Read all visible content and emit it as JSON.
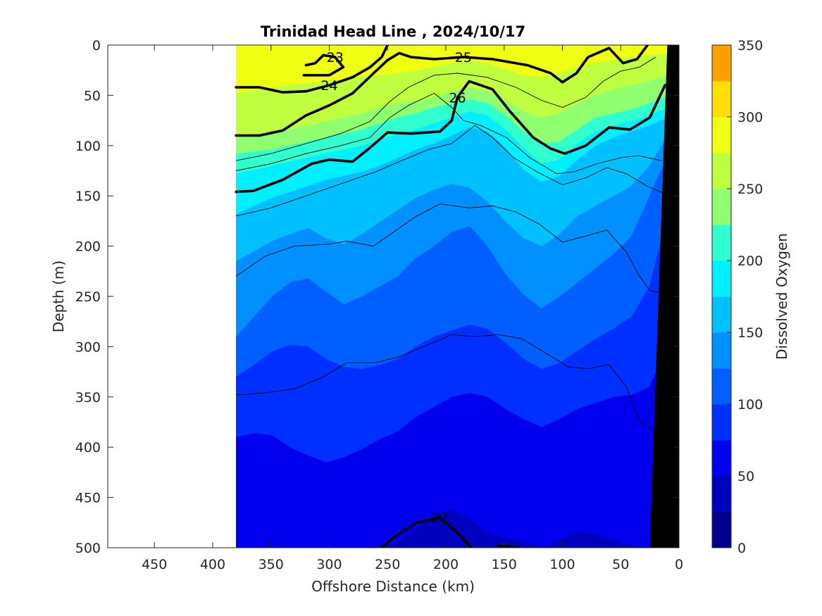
{
  "chart_data": {
    "type": "contour",
    "title": "Trinidad Head Line , 2024/10/17",
    "xlabel": "Offshore Distance (km)",
    "ylabel": "Depth (m)",
    "xlim": [
      490,
      0
    ],
    "ylim": [
      0,
      500
    ],
    "x_reversed": true,
    "y_reversed": true,
    "xticks": [
      450,
      400,
      350,
      300,
      250,
      200,
      150,
      100,
      50,
      0
    ],
    "yticks": [
      0,
      50,
      100,
      150,
      200,
      250,
      300,
      350,
      400,
      450,
      500
    ],
    "data_x_range": [
      380,
      10
    ],
    "colorbar": {
      "label": "Dissolved Oxygen",
      "min": 0,
      "max": 350,
      "step": 25,
      "ticks": [
        0,
        50,
        100,
        150,
        200,
        250,
        300,
        350
      ],
      "colors": [
        "#00008f",
        "#0000bf",
        "#0000ef",
        "#0030ff",
        "#0060ff",
        "#0090ff",
        "#00c0ff",
        "#00f0ff",
        "#30ffcf",
        "#90ff6f",
        "#c0ff3f",
        "#f0ff0f",
        "#ffdf00",
        "#ffa000",
        "#ff5f00",
        "#ff1f00",
        "#bf0000"
      ]
    },
    "oxygen_bands": [
      {
        "level": 250,
        "depths": [
          48,
          45,
          42,
          40,
          38,
          36,
          34,
          32,
          30,
          28,
          26,
          22,
          18,
          16,
          18,
          24,
          30,
          32,
          28,
          22,
          18,
          15,
          12,
          10,
          9
        ]
      },
      {
        "level": 225,
        "depths": [
          92,
          88,
          86,
          84,
          80,
          76,
          72,
          68,
          62,
          58,
          56,
          52,
          46,
          42,
          46,
          55,
          66,
          72,
          68,
          58,
          50,
          44,
          40,
          36,
          30
        ]
      },
      {
        "level": 200,
        "depths": [
          108,
          106,
          104,
          100,
          96,
          92,
          88,
          84,
          78,
          72,
          68,
          62,
          58,
          54,
          58,
          70,
          86,
          98,
          96,
          84,
          72,
          68,
          64,
          58,
          50
        ]
      },
      {
        "level": 175,
        "depths": [
          128,
          124,
          120,
          116,
          112,
          108,
          104,
          100,
          94,
          88,
          84,
          78,
          72,
          66,
          70,
          84,
          102,
          118,
          114,
          98,
          86,
          80,
          76,
          70,
          62
        ]
      },
      {
        "level": 150,
        "depths": [
          168,
          160,
          152,
          146,
          140,
          134,
          130,
          126,
          120,
          112,
          104,
          98,
          90,
          82,
          86,
          102,
          124,
          136,
          130,
          114,
          100,
          92,
          86,
          80,
          72
        ]
      },
      {
        "level": 125,
        "depths": [
          215,
          205,
          195,
          188,
          182,
          192,
          198,
          188,
          176,
          164,
          152,
          144,
          138,
          142,
          156,
          176,
          192,
          200,
          188,
          170,
          160,
          150,
          140,
          120,
          90
        ]
      },
      {
        "level": 100,
        "depths": [
          290,
          270,
          250,
          236,
          232,
          245,
          258,
          250,
          240,
          230,
          212,
          200,
          186,
          180,
          200,
          228,
          248,
          262,
          250,
          236,
          222,
          208,
          190,
          150,
          110
        ]
      },
      {
        "level": 75,
        "depths": [
          330,
          318,
          305,
          298,
          300,
          312,
          320,
          322,
          318,
          312,
          300,
          290,
          284,
          278,
          282,
          296,
          312,
          322,
          316,
          304,
          292,
          282,
          270,
          240,
          170
        ]
      },
      {
        "level": 50,
        "depths": [
          390,
          386,
          388,
          400,
          408,
          415,
          410,
          402,
          392,
          384,
          370,
          360,
          350,
          346,
          350,
          362,
          372,
          380,
          372,
          362,
          356,
          350,
          348,
          340,
          300
        ]
      },
      {
        "level": 25,
        "depths": [
          500,
          500,
          500,
          500,
          500,
          500,
          500,
          500,
          500,
          495,
          480,
          468,
          462,
          470,
          486,
          490,
          494,
          500,
          492,
          484,
          486,
          492,
          498,
          500,
          500
        ]
      }
    ],
    "density_contours": [
      {
        "level": 23,
        "label": "23",
        "bold": true,
        "points": [
          [
            320,
            20
          ],
          [
            312,
            18
          ],
          [
            305,
            10
          ],
          [
            295,
            12
          ],
          [
            288,
            22
          ],
          [
            300,
            30
          ],
          [
            322,
            30
          ]
        ]
      },
      {
        "level": 24,
        "label": "24",
        "bold": true,
        "points": [
          [
            380,
            42
          ],
          [
            360,
            42
          ],
          [
            340,
            47
          ],
          [
            320,
            46
          ],
          [
            300,
            40
          ],
          [
            280,
            32
          ],
          [
            265,
            22
          ],
          [
            255,
            12
          ],
          [
            250,
            0
          ]
        ]
      },
      {
        "level": 25,
        "label": "25",
        "bold": true,
        "points": [
          [
            380,
            90
          ],
          [
            360,
            90
          ],
          [
            340,
            85
          ],
          [
            320,
            70
          ],
          [
            300,
            60
          ],
          [
            280,
            48
          ],
          [
            262,
            28
          ],
          [
            250,
            15
          ],
          [
            240,
            8
          ],
          [
            230,
            12
          ],
          [
            210,
            14
          ],
          [
            185,
            12
          ],
          [
            160,
            14
          ],
          [
            130,
            20
          ],
          [
            110,
            28
          ],
          [
            100,
            37
          ],
          [
            88,
            28
          ],
          [
            78,
            12
          ],
          [
            60,
            3
          ],
          [
            48,
            18
          ],
          [
            36,
            14
          ],
          [
            27,
            0
          ]
        ]
      },
      {
        "level": 26,
        "label": "26",
        "bold": true,
        "points": [
          [
            380,
            146
          ],
          [
            365,
            145
          ],
          [
            340,
            134
          ],
          [
            315,
            118
          ],
          [
            300,
            114
          ],
          [
            280,
            116
          ],
          [
            265,
            102
          ],
          [
            250,
            87
          ],
          [
            230,
            88
          ],
          [
            205,
            86
          ],
          [
            195,
            75
          ],
          [
            190,
            52
          ],
          [
            180,
            36
          ],
          [
            160,
            44
          ],
          [
            145,
            66
          ],
          [
            125,
            92
          ],
          [
            110,
            103
          ],
          [
            98,
            108
          ],
          [
            80,
            100
          ],
          [
            60,
            82
          ],
          [
            42,
            84
          ],
          [
            25,
            72
          ],
          [
            12,
            40
          ]
        ]
      },
      {
        "level": 27,
        "label": "27",
        "bold": true,
        "points": [
          [
            255,
            500
          ],
          [
            245,
            490
          ],
          [
            225,
            475
          ],
          [
            205,
            470
          ],
          [
            190,
            485
          ],
          [
            178,
            500
          ]
        ]
      },
      {
        "level": 27,
        "label": "",
        "bold": true,
        "points": [
          [
            155,
            498
          ],
          [
            145,
            499
          ],
          [
            138,
            500
          ]
        ]
      }
    ],
    "thin_contours": [
      [
        [
          380,
          115
        ],
        [
          350,
          108
        ],
        [
          320,
          98
        ],
        [
          290,
          88
        ],
        [
          265,
          76
        ],
        [
          248,
          56
        ],
        [
          232,
          42
        ],
        [
          210,
          30
        ],
        [
          190,
          28
        ],
        [
          165,
          32
        ],
        [
          140,
          42
        ],
        [
          118,
          55
        ],
        [
          100,
          62
        ],
        [
          80,
          52
        ],
        [
          65,
          36
        ],
        [
          50,
          26
        ],
        [
          34,
          22
        ],
        [
          20,
          12
        ]
      ],
      [
        [
          380,
          125
        ],
        [
          350,
          118
        ],
        [
          320,
          108
        ],
        [
          290,
          100
        ],
        [
          265,
          92
        ],
        [
          248,
          72
        ],
        [
          232,
          60
        ],
        [
          210,
          48
        ],
        [
          195,
          62
        ],
        [
          185,
          75
        ],
        [
          170,
          80
        ],
        [
          148,
          92
        ],
        [
          128,
          112
        ],
        [
          105,
          128
        ],
        [
          90,
          126
        ],
        [
          70,
          118
        ],
        [
          50,
          112
        ],
        [
          35,
          110
        ],
        [
          15,
          115
        ]
      ],
      [
        [
          380,
          170
        ],
        [
          350,
          162
        ],
        [
          320,
          150
        ],
        [
          290,
          138
        ],
        [
          260,
          126
        ],
        [
          240,
          116
        ],
        [
          215,
          104
        ],
        [
          195,
          98
        ],
        [
          175,
          80
        ],
        [
          160,
          92
        ],
        [
          142,
          112
        ],
        [
          122,
          126
        ],
        [
          100,
          139
        ],
        [
          80,
          132
        ],
        [
          62,
          122
        ],
        [
          45,
          128
        ],
        [
          28,
          140
        ],
        [
          12,
          148
        ]
      ],
      [
        [
          380,
          230
        ],
        [
          355,
          210
        ],
        [
          330,
          200
        ],
        [
          300,
          198
        ],
        [
          285,
          195
        ],
        [
          262,
          200
        ],
        [
          245,
          186
        ],
        [
          225,
          170
        ],
        [
          205,
          158
        ],
        [
          180,
          162
        ],
        [
          160,
          160
        ],
        [
          140,
          166
        ],
        [
          120,
          178
        ],
        [
          100,
          196
        ],
        [
          80,
          190
        ],
        [
          62,
          184
        ],
        [
          45,
          206
        ],
        [
          35,
          228
        ],
        [
          25,
          244
        ],
        [
          12,
          248
        ]
      ],
      [
        [
          380,
          348
        ],
        [
          355,
          346
        ],
        [
          330,
          342
        ],
        [
          305,
          330
        ],
        [
          285,
          316
        ],
        [
          260,
          316
        ],
        [
          240,
          310
        ],
        [
          215,
          298
        ],
        [
          195,
          288
        ],
        [
          175,
          290
        ],
        [
          155,
          288
        ],
        [
          135,
          292
        ],
        [
          115,
          306
        ],
        [
          95,
          320
        ],
        [
          78,
          322
        ],
        [
          60,
          318
        ],
        [
          45,
          340
        ],
        [
          35,
          372
        ],
        [
          22,
          384
        ]
      ]
    ],
    "bottom_topography": {
      "points": [
        [
          10,
          0
        ],
        [
          25,
          500
        ],
        [
          0,
          500
        ],
        [
          0,
          0
        ]
      ]
    }
  }
}
